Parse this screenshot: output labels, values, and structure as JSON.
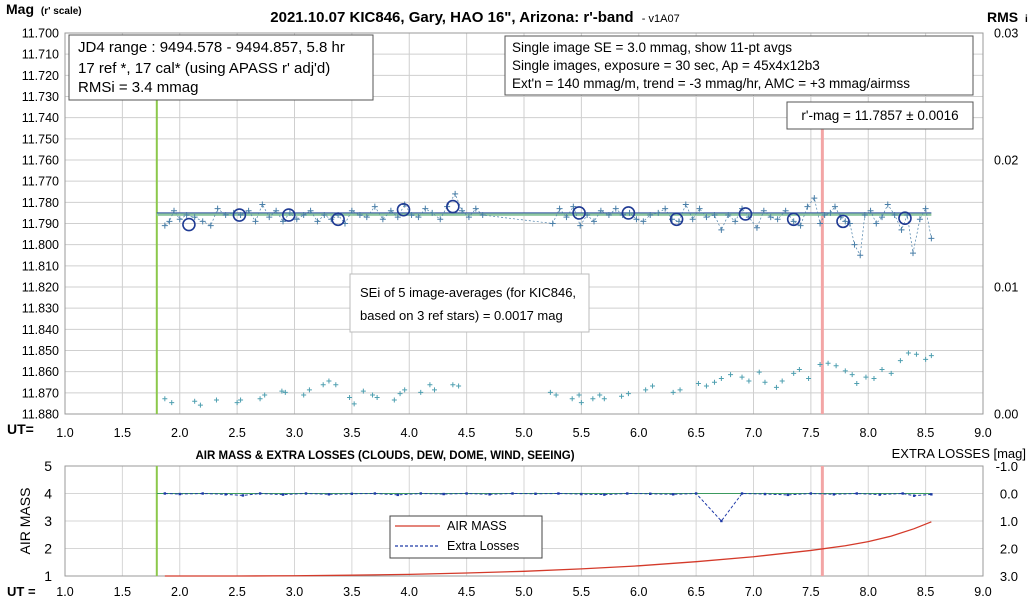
{
  "chart_data": [
    {
      "type": "scatter",
      "title": "2021.10.07 KIC846, Gary, HAO 16\", Arizona: r'-band",
      "title_suffix": "- v1A07",
      "ylabel": "Mag",
      "ylabel_suffix": "(r' scale)",
      "y2label": "RMS",
      "y2label_suffix": "i",
      "xlabel": "UT=",
      "xlim": [
        1.0,
        9.0
      ],
      "ylim": [
        11.88,
        11.7
      ],
      "y2lim": [
        0.0,
        0.03
      ],
      "x_ticks": [
        "1.0",
        "1.5",
        "2.0",
        "2.5",
        "3.0",
        "3.5",
        "4.0",
        "4.5",
        "5.0",
        "5.5",
        "6.0",
        "6.5",
        "7.0",
        "7.5",
        "8.0",
        "8.5",
        "9.0"
      ],
      "y_ticks": [
        "11.700",
        "11.710",
        "11.720",
        "11.730",
        "11.740",
        "11.750",
        "11.760",
        "11.770",
        "11.780",
        "11.790",
        "11.800",
        "11.810",
        "11.820",
        "11.830",
        "11.840",
        "11.850",
        "11.860",
        "11.870",
        "11.880"
      ],
      "y2_ticks": [
        "0.03",
        "0.02",
        "0.01",
        "0.00"
      ],
      "grid": true,
      "boxes": {
        "left": [
          "JD4 range : 9494.578 - 9494.857,  5.8  hr",
          "17 ref *, 17 cal* (using APASS r' adj'd)",
          "RMSi = 3.4 mmag"
        ],
        "right": [
          "Single image SE = 3.0 mmag, show  11-pt avgs",
          "Single images, exposure = 30 sec, Ap = 45x4x12b3",
          "Ext'n = 140 mmag/m, trend = -3  mmag/hr, AMC = +3 mmag/airmss"
        ],
        "mag": "r'-mag = 11.7857 ± 0.0016",
        "sei": [
          "SEi of 5 image-averages (for KIC846,",
          "based on 3 ref stars) = 0.0017 mag"
        ]
      },
      "reference_lines": {
        "green_vertical_x": 1.8,
        "pink_vertical_x": 7.6,
        "mean_mag": 11.7857
      },
      "series": [
        {
          "role": "single-image magnitudes",
          "marker": "+",
          "color": "#4a7fa8",
          "x": [
            1.87,
            1.91,
            1.95,
            2.0,
            2.06,
            2.13,
            2.2,
            2.27,
            2.33,
            2.4,
            2.47,
            2.53,
            2.6,
            2.66,
            2.72,
            2.78,
            2.84,
            2.9,
            2.96,
            3.02,
            3.08,
            3.14,
            3.2,
            3.26,
            3.32,
            3.38,
            3.44,
            3.5,
            3.57,
            3.63,
            3.7,
            3.77,
            3.84,
            3.9,
            3.96,
            4.02,
            4.08,
            4.14,
            4.2,
            4.27,
            4.33,
            4.4,
            4.46,
            4.52,
            4.58,
            4.64,
            5.25,
            5.31,
            5.37,
            5.43,
            5.49,
            5.55,
            5.61,
            5.67,
            5.74,
            5.8,
            5.86,
            5.92,
            5.98,
            6.04,
            6.1,
            6.17,
            6.23,
            6.29,
            6.35,
            6.41,
            6.47,
            6.53,
            6.59,
            6.66,
            6.72,
            6.78,
            6.84,
            6.9,
            6.96,
            7.03,
            7.09,
            7.15,
            7.21,
            7.28,
            7.35,
            7.41,
            7.47,
            7.53,
            7.58,
            7.62,
            7.67,
            7.71,
            7.76,
            7.8,
            7.84,
            7.88,
            7.93,
            7.97,
            8.02,
            8.07,
            8.12,
            8.17,
            8.23,
            8.29,
            8.34,
            8.39,
            8.45,
            8.5,
            8.55
          ],
          "y": [
            11.791,
            11.789,
            11.784,
            11.788,
            11.786,
            11.787,
            11.789,
            11.791,
            11.783,
            11.786,
            11.785,
            11.786,
            11.784,
            11.789,
            11.781,
            11.787,
            11.784,
            11.789,
            11.785,
            11.788,
            11.786,
            11.784,
            11.789,
            11.786,
            11.788,
            11.786,
            11.79,
            11.784,
            11.786,
            11.787,
            11.782,
            11.788,
            11.784,
            11.787,
            11.781,
            11.786,
            11.787,
            11.783,
            11.785,
            11.788,
            11.782,
            11.776,
            11.784,
            11.787,
            11.783,
            11.786,
            11.79,
            11.783,
            11.787,
            11.782,
            11.791,
            11.786,
            11.789,
            11.784,
            11.786,
            11.783,
            11.786,
            11.785,
            11.788,
            11.789,
            11.786,
            11.785,
            11.783,
            11.788,
            11.789,
            11.781,
            11.788,
            11.783,
            11.787,
            11.786,
            11.793,
            11.786,
            11.789,
            11.783,
            11.787,
            11.792,
            11.784,
            11.787,
            11.788,
            11.784,
            11.789,
            11.791,
            11.782,
            11.778,
            11.79,
            11.786,
            11.785,
            11.782,
            11.787,
            11.789,
            11.79,
            11.8,
            11.805,
            11.786,
            11.784,
            11.79,
            11.787,
            11.781,
            11.786,
            11.793,
            11.786,
            11.804,
            11.788,
            11.783,
            11.797
          ]
        },
        {
          "role": "11-point averages",
          "marker": "circle",
          "color": "#1f3a93",
          "x": [
            2.08,
            2.52,
            2.95,
            3.38,
            3.95,
            4.38,
            5.48,
            5.91,
            6.33,
            6.93,
            7.35,
            7.78,
            8.32
          ],
          "y": [
            11.7905,
            11.786,
            11.786,
            11.788,
            11.7835,
            11.782,
            11.785,
            11.785,
            11.788,
            11.7855,
            11.788,
            11.789,
            11.7875
          ]
        },
        {
          "role": "RMSi (right axis)",
          "marker": "+",
          "color": "#4e9fb0",
          "x": [
            1.87,
            1.93,
            2.13,
            2.18,
            2.32,
            2.5,
            2.53,
            2.7,
            2.74,
            2.89,
            2.92,
            3.08,
            3.13,
            3.25,
            3.3,
            3.36,
            3.48,
            3.52,
            3.6,
            3.68,
            3.72,
            3.87,
            3.92,
            3.96,
            4.1,
            4.18,
            4.22,
            4.38,
            4.43,
            5.23,
            5.28,
            5.42,
            5.48,
            5.5,
            5.6,
            5.66,
            5.7,
            5.85,
            5.91,
            6.06,
            6.12,
            6.3,
            6.36,
            6.52,
            6.59,
            6.66,
            6.72,
            6.8,
            6.9,
            6.96,
            7.05,
            7.1,
            7.2,
            7.25,
            7.35,
            7.4,
            7.48,
            7.58,
            7.65,
            7.72,
            7.8,
            7.86,
            7.9,
            7.98,
            8.05,
            8.12,
            8.2,
            8.28,
            8.35,
            8.42,
            8.5,
            8.55
          ],
          "y": [
            0.0012,
            0.0009,
            0.001,
            0.0007,
            0.0011,
            0.0009,
            0.0011,
            0.0012,
            0.0015,
            0.0018,
            0.0017,
            0.0015,
            0.0019,
            0.0023,
            0.0026,
            0.0023,
            0.0013,
            0.0008,
            0.0018,
            0.0015,
            0.0013,
            0.0011,
            0.0016,
            0.0019,
            0.0017,
            0.0023,
            0.0019,
            0.0023,
            0.0022,
            0.0017,
            0.0015,
            0.0012,
            0.0015,
            0.0009,
            0.0012,
            0.0015,
            0.0012,
            0.0014,
            0.0016,
            0.0019,
            0.0022,
            0.0017,
            0.0019,
            0.0024,
            0.0022,
            0.0025,
            0.0028,
            0.0031,
            0.0029,
            0.0026,
            0.0033,
            0.0025,
            0.0021,
            0.0026,
            0.0032,
            0.0035,
            0.0028,
            0.0039,
            0.004,
            0.0038,
            0.0034,
            0.0031,
            0.0024,
            0.0029,
            0.0028,
            0.0035,
            0.0032,
            0.0042,
            0.0048,
            0.0047,
            0.0043,
            0.0046
          ]
        }
      ]
    },
    {
      "type": "line",
      "title": "AIR MASS & EXTRA LOSSES (CLOUDS, DEW, DOME, WIND, SEEING)",
      "ylabel": "AIR MASS",
      "y2label": "EXTRA LOSSES [mag]",
      "xlabel": "UT =",
      "xlim": [
        1.0,
        9.0
      ],
      "ylim": [
        1,
        5
      ],
      "y2lim": [
        3.0,
        -1.0
      ],
      "x_ticks": [
        "1.0",
        "1.5",
        "2.0",
        "2.5",
        "3.0",
        "3.5",
        "4.0",
        "4.5",
        "5.0",
        "5.5",
        "6.0",
        "6.5",
        "7.0",
        "7.5",
        "8.0",
        "8.5",
        "9.0"
      ],
      "y_ticks": [
        "1",
        "2",
        "3",
        "4",
        "5"
      ],
      "y2_ticks": [
        "-1.0",
        "0.0",
        "1.0",
        "2.0",
        "3.0"
      ],
      "legend_position": "center-left",
      "series": [
        {
          "name": "AIR MASS",
          "color": "#d43a2a",
          "x": [
            1.87,
            2.5,
            3.0,
            3.5,
            4.0,
            4.5,
            5.0,
            5.5,
            6.0,
            6.5,
            7.0,
            7.5,
            7.8,
            8.0,
            8.2,
            8.4,
            8.55
          ],
          "y": [
            1.0,
            1.0,
            1.01,
            1.03,
            1.06,
            1.11,
            1.17,
            1.26,
            1.37,
            1.52,
            1.7,
            1.93,
            2.1,
            2.25,
            2.45,
            2.72,
            2.97
          ]
        },
        {
          "name": "Extra Losses",
          "color": "#1f3aa8",
          "x": [
            1.87,
            2.0,
            2.2,
            2.4,
            2.55,
            2.7,
            2.9,
            3.1,
            3.3,
            3.5,
            3.7,
            3.9,
            4.1,
            4.3,
            4.5,
            4.7,
            4.9,
            5.1,
            5.3,
            5.5,
            5.7,
            5.9,
            6.1,
            6.3,
            6.5,
            6.72,
            6.9,
            7.1,
            7.3,
            7.5,
            7.7,
            7.9,
            8.1,
            8.3,
            8.4,
            8.55
          ],
          "y": [
            0.0,
            0.02,
            0.0,
            0.03,
            0.07,
            0.0,
            0.04,
            0.0,
            0.03,
            0.01,
            0.0,
            0.05,
            0.0,
            0.02,
            0.0,
            0.03,
            0.0,
            0.01,
            0.0,
            0.02,
            0.04,
            0.0,
            0.01,
            0.03,
            0.0,
            1.0,
            0.0,
            0.02,
            0.05,
            0.0,
            0.03,
            0.0,
            0.04,
            0.0,
            0.08,
            0.03
          ]
        }
      ]
    }
  ]
}
